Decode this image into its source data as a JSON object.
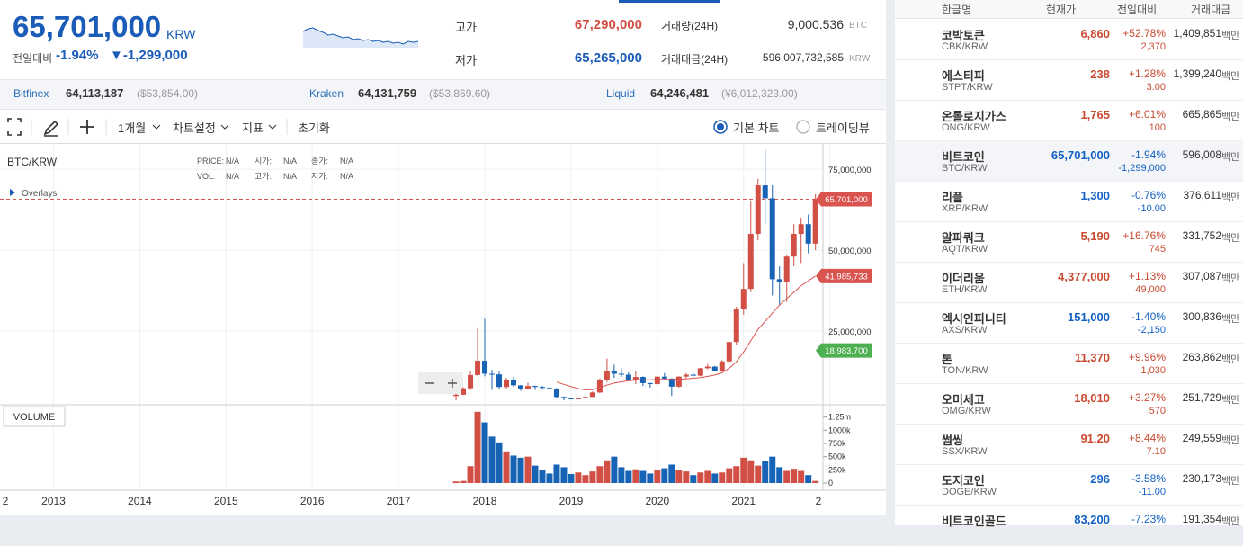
{
  "header": {
    "price": "65,701,000",
    "currency": "KRW",
    "change_label": "전일대비",
    "change_pct": "-1.94%",
    "change_amt": "▼-1,299,000",
    "sparkline": [
      66800000,
      67100000,
      67200000,
      66900000,
      66700000,
      66400000,
      66500000,
      66300000,
      66100000,
      66200000,
      65900000,
      66000000,
      65800000,
      65900000,
      65700000,
      65800000,
      65600000,
      65700000,
      65500000,
      65600000,
      65400000,
      65700000,
      65600000,
      65701000
    ],
    "high_label": "고가",
    "high": "67,290,000",
    "low_label": "저가",
    "low": "65,265,000",
    "volume_label": "거래량(24H)",
    "volume": "9,000.536",
    "volume_unit": "BTC",
    "value_label": "거래대금(24H)",
    "value": "596,007,732,585",
    "value_unit": "KRW"
  },
  "exchanges": [
    {
      "name": "Bitfinex",
      "price": "64,113,187",
      "ref": "($53,854.00)"
    },
    {
      "name": "Kraken",
      "price": "64,131,759",
      "ref": "($53,869.60)"
    },
    {
      "name": "Liquid",
      "price": "64,246,481",
      "ref": "(¥6,012,323.00)"
    }
  ],
  "toolbar": {
    "period": "1개월",
    "settings": "차트설정",
    "indicators": "지표",
    "reset": "초기화",
    "basic_chart": "기본 차트",
    "tradingview": "트레이딩뷰"
  },
  "chart_data": {
    "type": "candlestick",
    "title": "BTC/KRW",
    "info": [
      [
        "PRICE:",
        "N/A"
      ],
      [
        "시가:",
        "N/A"
      ],
      [
        "종가:",
        "N/A"
      ],
      [
        "VOL:",
        "N/A"
      ],
      [
        "고가:",
        "N/A"
      ],
      [
        "저가:",
        "N/A"
      ]
    ],
    "overlays": "Overlays",
    "volume_title": "VOLUME",
    "x": [
      "2017-09",
      "2017-10",
      "2017-11",
      "2017-12",
      "2018-01",
      "2018-02",
      "2018-03",
      "2018-04",
      "2018-05",
      "2018-06",
      "2018-07",
      "2018-08",
      "2018-09",
      "2018-10",
      "2018-11",
      "2018-12",
      "2019-01",
      "2019-02",
      "2019-03",
      "2019-04",
      "2019-05",
      "2019-06",
      "2019-07",
      "2019-08",
      "2019-09",
      "2019-10",
      "2019-11",
      "2019-12",
      "2020-01",
      "2020-02",
      "2020-03",
      "2020-04",
      "2020-05",
      "2020-06",
      "2020-07",
      "2020-08",
      "2020-09",
      "2020-10",
      "2020-11",
      "2020-12",
      "2021-01",
      "2021-02",
      "2021-03",
      "2021-04",
      "2021-05",
      "2021-06",
      "2021-07",
      "2021-08",
      "2021-09",
      "2021-10",
      "2021-11"
    ],
    "open": [
      4900000,
      5300000,
      7300000,
      11400000,
      15800000,
      11800000,
      11600000,
      7700000,
      10000000,
      8200000,
      7000000,
      8000000,
      7700000,
      7400000,
      7200000,
      4600000,
      4300000,
      3900000,
      4300000,
      4600000,
      6000000,
      10000000,
      12600000,
      11800000,
      11500000,
      9800000,
      10800000,
      8900000,
      8600000,
      10900000,
      10300000,
      7800000,
      10900000,
      11500000,
      11200000,
      13500000,
      14000000,
      12700000,
      15600000,
      21600000,
      31900000,
      38000000,
      55000000,
      70000000,
      66000000,
      41000000,
      40000000,
      48000000,
      55000000,
      58000000,
      52000000
    ],
    "close": [
      5300000,
      7300000,
      11400000,
      15800000,
      11800000,
      11600000,
      7700000,
      10000000,
      8200000,
      7000000,
      8000000,
      7700000,
      7400000,
      7200000,
      4600000,
      4300000,
      3900000,
      4300000,
      4600000,
      6000000,
      10000000,
      12600000,
      11800000,
      11500000,
      9800000,
      10800000,
      8900000,
      8600000,
      10900000,
      10300000,
      7800000,
      10900000,
      11500000,
      11200000,
      13500000,
      14000000,
      12700000,
      15600000,
      21600000,
      31900000,
      38000000,
      55000000,
      70000000,
      66000000,
      41000000,
      40000000,
      48000000,
      55000000,
      58000000,
      52000000,
      65701000
    ],
    "high": [
      5600000,
      7600000,
      12500000,
      25900000,
      28800000,
      13000000,
      12500000,
      10500000,
      10800000,
      8300000,
      9000000,
      8100000,
      8000000,
      7600000,
      7400000,
      4800000,
      4400000,
      4500000,
      4700000,
      6300000,
      10300000,
      16500000,
      14600000,
      13500000,
      12200000,
      12500000,
      11000000,
      9000000,
      11000000,
      12000000,
      10400000,
      11000000,
      12000000,
      12000000,
      13600000,
      14800000,
      14200000,
      16000000,
      21800000,
      32500000,
      46000000,
      65000000,
      72000000,
      81000000,
      70000000,
      45000000,
      48500000,
      58000000,
      60000000,
      61000000,
      67290000
    ],
    "low": [
      3500000,
      5200000,
      6800000,
      11000000,
      11000000,
      6800000,
      7000000,
      7200000,
      7800000,
      6500000,
      6900000,
      6800000,
      6900000,
      7000000,
      4300000,
      3600000,
      3800000,
      3900000,
      4200000,
      4600000,
      5800000,
      9200000,
      10500000,
      10800000,
      9500000,
      8600000,
      8000000,
      7500000,
      8300000,
      10000000,
      4900000,
      7500000,
      10300000,
      10900000,
      11000000,
      13200000,
      12500000,
      12600000,
      15200000,
      20800000,
      30000000,
      37000000,
      53000000,
      58000000,
      36000000,
      33000000,
      34000000,
      45000000,
      46000000,
      49000000,
      50000000
    ],
    "volume": [
      30000,
      40000,
      320000,
      1350000,
      1150000,
      880000,
      770000,
      600000,
      520000,
      480000,
      500000,
      330000,
      250000,
      180000,
      350000,
      300000,
      170000,
      200000,
      150000,
      220000,
      320000,
      430000,
      500000,
      300000,
      230000,
      260000,
      230000,
      180000,
      250000,
      280000,
      350000,
      250000,
      220000,
      150000,
      200000,
      230000,
      180000,
      200000,
      280000,
      320000,
      480000,
      430000,
      330000,
      420000,
      500000,
      300000,
      230000,
      270000,
      230000,
      150000,
      40000
    ],
    "ma": [
      null,
      null,
      null,
      null,
      null,
      null,
      null,
      null,
      null,
      null,
      null,
      null,
      null,
      null,
      9200000,
      8500000,
      7800000,
      7200000,
      6800000,
      6900000,
      7500000,
      8300000,
      8900000,
      9300000,
      9600000,
      9800000,
      9900000,
      9900000,
      10000000,
      10100000,
      10000000,
      10100000,
      10200000,
      10400000,
      10600000,
      11000000,
      11400000,
      12100000,
      13500000,
      15500000,
      18500000,
      22000000,
      25500000,
      28000000,
      30500000,
      33000000,
      35000000,
      37000000,
      39000000,
      40500000,
      41985733
    ],
    "up_color": "#d24f45",
    "down_color": "#1763b6",
    "ma_color": "#d9534f",
    "xlim": [
      2012.38,
      2021.92
    ],
    "xticks": [
      {
        "value": 2012,
        "label": "2"
      },
      2013,
      2014,
      2015,
      2016,
      2017,
      2018,
      2019,
      2020,
      2021,
      {
        "value": 2022,
        "label": "2"
      }
    ],
    "ylim": [
      2200000,
      82800000
    ],
    "yticks": [
      {
        "value": 25000000,
        "label": "25,000,000"
      },
      {
        "value": 50000000,
        "label": "50,000,000"
      },
      {
        "value": 75000000,
        "label": "75,000,000"
      }
    ],
    "vlim": [
      0,
      1500000
    ],
    "vticks": [
      0,
      {
        "value": 250000,
        "label": "250k"
      },
      {
        "value": 500000,
        "label": "500k"
      },
      {
        "value": 750000,
        "label": "750k"
      },
      {
        "value": 1000000,
        "label": "1000k"
      },
      {
        "value": 1250000,
        "label": "1.25m"
      }
    ],
    "grid": true,
    "price_markers": [
      {
        "value": 65701000,
        "label": "65,701,000",
        "color": "#d9534f",
        "dashed": true
      },
      {
        "value": 41985733,
        "label": "41,985,733",
        "color": "#d9534f"
      },
      {
        "value": 18983700,
        "label": "18,983,700",
        "color": "#4caf50"
      }
    ]
  },
  "market": {
    "columns": [
      "한글명",
      "현재가",
      "전일대비",
      "거래대금"
    ],
    "volume_unit": "백만",
    "rows": [
      {
        "name": "코박토큰",
        "code": "CBK/KRW",
        "price": "6,860",
        "change_pct": "+52.78%",
        "change_amt": "2,370",
        "volume": "1,409,851"
      },
      {
        "name": "에스티피",
        "code": "STPT/KRW",
        "price": "238",
        "change_pct": "+1.28%",
        "change_amt": "3.00",
        "volume": "1,399,240"
      },
      {
        "name": "온톨로지가스",
        "code": "ONG/KRW",
        "price": "1,765",
        "change_pct": "+6.01%",
        "change_amt": "100",
        "volume": "665,865"
      },
      {
        "name": "비트코인",
        "code": "BTC/KRW",
        "price": "65,701,000",
        "change_pct": "-1.94%",
        "change_amt": "-1,299,000",
        "volume": "596,008",
        "selected": true
      },
      {
        "name": "리플",
        "code": "XRP/KRW",
        "price": "1,300",
        "change_pct": "-0.76%",
        "change_amt": "-10.00",
        "volume": "376,611"
      },
      {
        "name": "알파쿼크",
        "code": "AQT/KRW",
        "price": "5,190",
        "change_pct": "+16.76%",
        "change_amt": "745",
        "volume": "331,752"
      },
      {
        "name": "이더리움",
        "code": "ETH/KRW",
        "price": "4,377,000",
        "change_pct": "+1.13%",
        "change_amt": "49,000",
        "volume": "307,087"
      },
      {
        "name": "엑시인피니티",
        "code": "AXS/KRW",
        "price": "151,000",
        "change_pct": "-1.40%",
        "change_amt": "-2,150",
        "volume": "300,836"
      },
      {
        "name": "톤",
        "code": "TON/KRW",
        "price": "11,370",
        "change_pct": "+9.96%",
        "change_amt": "1,030",
        "volume": "263,862"
      },
      {
        "name": "오미세고",
        "code": "OMG/KRW",
        "price": "18,010",
        "change_pct": "+3.27%",
        "change_amt": "570",
        "volume": "251,729"
      },
      {
        "name": "썸씽",
        "code": "SSX/KRW",
        "price": "91.20",
        "change_pct": "+8.44%",
        "change_amt": "7.10",
        "volume": "249,559"
      },
      {
        "name": "도지코인",
        "code": "DOGE/KRW",
        "price": "296",
        "change_pct": "-3.58%",
        "change_amt": "-11.00",
        "volume": "230,173"
      },
      {
        "name": "비트코인골드",
        "price": "83,200",
        "change_pct": "-7.23%",
        "volume": "191,354"
      }
    ]
  }
}
